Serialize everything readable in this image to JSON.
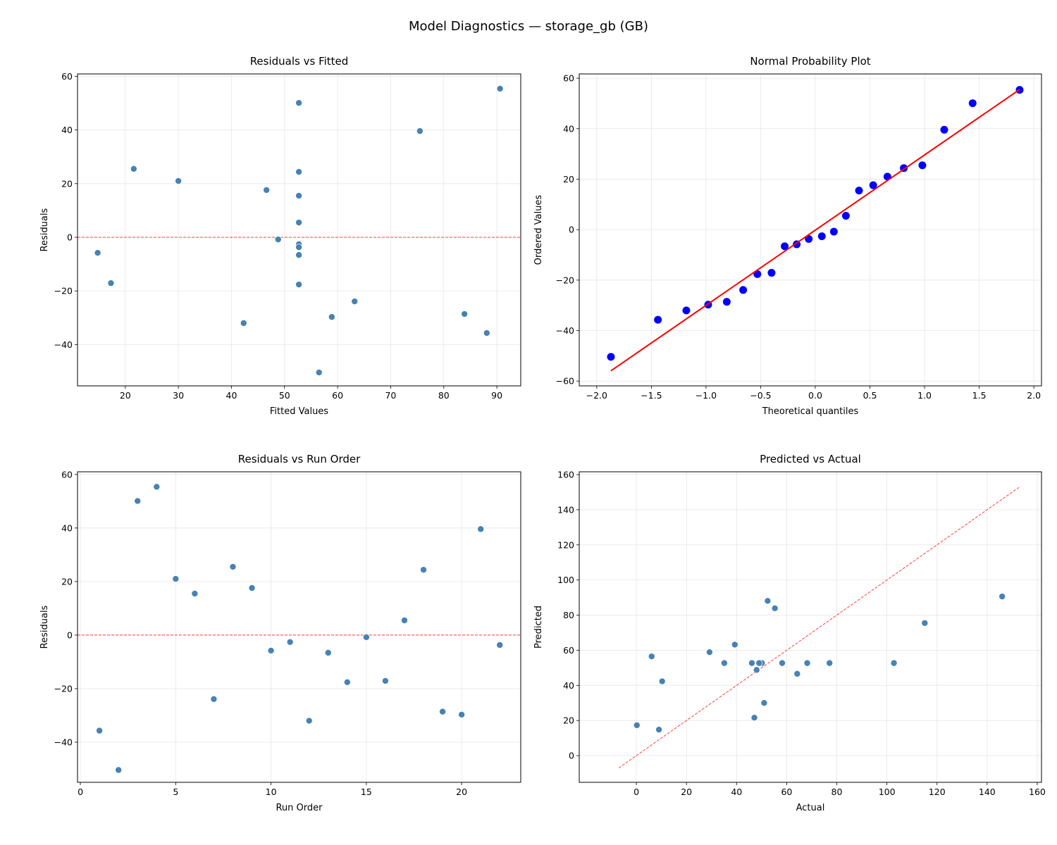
{
  "suptitle": "Model Diagnostics — storage_gb (GB)",
  "chart_data": [
    {
      "type": "scatter",
      "title": "Residuals vs Fitted",
      "xlabel": "Fitted Values",
      "ylabel": "Residuals",
      "xlim": [
        11.0,
        94.5
      ],
      "ylim": [
        -55.4,
        60.9
      ],
      "xticks": [
        20,
        30,
        40,
        50,
        60,
        70,
        80,
        90
      ],
      "yticks": [
        -40,
        -20,
        0,
        20,
        40,
        60
      ],
      "grid": true,
      "point_color": "#4682b4",
      "reference_line": {
        "type": "horizontal",
        "y": 0,
        "color": "#ff0000",
        "style": "dashed"
      },
      "x": [
        88.1,
        56.5,
        52.7,
        90.6,
        30.0,
        52.7,
        63.2,
        21.6,
        46.6,
        14.8,
        52.7,
        42.3,
        52.7,
        52.7,
        48.8,
        17.3,
        52.7,
        52.7,
        83.9,
        58.9,
        75.5,
        52.7
      ],
      "y": [
        -35.7,
        -50.4,
        50.1,
        55.4,
        21.0,
        15.5,
        -23.9,
        25.5,
        17.6,
        -5.8,
        -2.6,
        -32.0,
        -6.6,
        -17.6,
        -0.8,
        -17.1,
        5.5,
        24.4,
        -28.6,
        -29.7,
        39.6,
        -3.7
      ]
    },
    {
      "type": "scatter",
      "title": "Normal Probability Plot",
      "xlabel": "Theoretical quantiles",
      "ylabel": "Ordered Values",
      "xlim": [
        -2.16,
        2.07
      ],
      "ylim": [
        -61.9,
        61.7
      ],
      "xticks": [
        -2.0,
        -1.5,
        -1.0,
        -0.5,
        0.0,
        0.5,
        1.0,
        1.5,
        2.0
      ],
      "yticks": [
        -60,
        -40,
        -20,
        0,
        20,
        40,
        60
      ],
      "grid": true,
      "point_color": "#0000ff",
      "fit_line": {
        "slope": 29.8,
        "intercept": -0.2,
        "color": "#ff0000"
      },
      "x": [
        -1.87,
        -1.44,
        -1.18,
        -0.98,
        -0.81,
        -0.66,
        -0.53,
        -0.4,
        -0.28,
        -0.17,
        -0.06,
        0.06,
        0.17,
        0.28,
        0.4,
        0.53,
        0.66,
        0.81,
        0.98,
        1.18,
        1.44,
        1.87
      ],
      "y": [
        -50.4,
        -35.7,
        -32.0,
        -29.7,
        -28.6,
        -23.9,
        -17.6,
        -17.1,
        -6.6,
        -5.8,
        -3.7,
        -2.6,
        -0.8,
        5.5,
        15.5,
        17.6,
        21.0,
        24.4,
        25.5,
        39.6,
        50.1,
        55.4
      ]
    },
    {
      "type": "scatter",
      "title": "Residuals vs Run Order",
      "xlabel": "Run Order",
      "ylabel": "Residuals",
      "xlim": [
        -0.15,
        23.1
      ],
      "ylim": [
        -55.0,
        61.0
      ],
      "xticks": [
        0,
        5,
        10,
        15,
        20
      ],
      "yticks": [
        -40,
        -20,
        0,
        20,
        40,
        60
      ],
      "grid": true,
      "point_color": "#4682b4",
      "reference_line": {
        "type": "horizontal",
        "y": 0,
        "color": "#ff0000",
        "style": "dashed"
      },
      "x": [
        1,
        2,
        3,
        4,
        5,
        6,
        7,
        8,
        9,
        10,
        11,
        12,
        13,
        14,
        15,
        16,
        17,
        18,
        19,
        20,
        21,
        22
      ],
      "y": [
        -35.7,
        -50.4,
        50.1,
        55.4,
        21.0,
        15.5,
        -23.9,
        25.5,
        17.6,
        -5.8,
        -2.6,
        -32.0,
        -6.6,
        -17.6,
        -0.8,
        -17.1,
        5.5,
        24.4,
        -28.6,
        -29.7,
        39.6,
        -3.7
      ]
    },
    {
      "type": "scatter",
      "title": "Predicted vs Actual",
      "xlabel": "Actual",
      "ylabel": "Predicted",
      "xlim": [
        -22.8,
        161.7
      ],
      "ylim": [
        -15.2,
        161.6
      ],
      "xticks": [
        0,
        20,
        40,
        60,
        80,
        100,
        120,
        140,
        160
      ],
      "yticks": [
        0,
        20,
        40,
        60,
        80,
        100,
        120,
        140,
        160
      ],
      "grid": true,
      "point_color": "#4682b4",
      "reference_line": {
        "type": "diagonal",
        "from": -7,
        "to": 153,
        "color": "#ff0000",
        "style": "dashed"
      },
      "x": [
        52.4,
        6.1,
        102.8,
        146.0,
        51.0,
        68.2,
        39.3,
        47.1,
        64.2,
        9.0,
        50.1,
        10.3,
        46.1,
        35.1,
        48.0,
        0.2,
        58.2,
        77.1,
        55.3,
        29.2,
        115.1,
        49.0
      ],
      "y": [
        88.1,
        56.5,
        52.7,
        90.6,
        30.0,
        52.7,
        63.2,
        21.6,
        46.6,
        14.8,
        52.7,
        42.3,
        52.7,
        52.7,
        48.8,
        17.3,
        52.7,
        52.7,
        83.9,
        58.9,
        75.5,
        52.7
      ]
    }
  ]
}
